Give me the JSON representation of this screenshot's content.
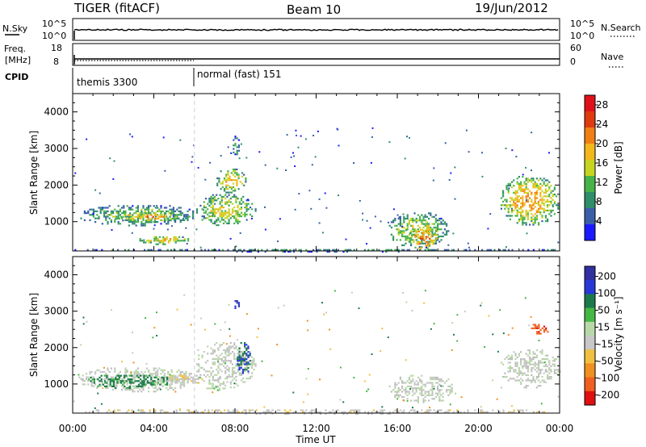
{
  "header": {
    "radar": "TIGER (fitACF)",
    "beam": "Beam 10",
    "date": "19/Jun/2012"
  },
  "top_panels": {
    "nsky_label": "N.Sky",
    "nsky_ticks": [
      "10^5",
      "10^0"
    ],
    "nsearch_label": "N.Search",
    "nsearch_ticks": [
      "10^5",
      "10^0"
    ],
    "freq_label_1": "Freq.",
    "freq_label_2": "[MHz]",
    "freq_ticks": [
      "18",
      "8"
    ],
    "nave_label": "Nave",
    "nave_ticks": [
      "60",
      "0"
    ],
    "cpid_label": "CPID",
    "cpid_segments": [
      {
        "label": "themis 3300",
        "start_hour": 0.0
      },
      {
        "label": "normal (fast) 151",
        "start_hour": 6.0
      }
    ]
  },
  "colors": {
    "power_scale": [
      "#1a1aff",
      "#3a5fa8",
      "#2f8f6a",
      "#48b34a",
      "#c7d420",
      "#f2b81c",
      "#f07f14",
      "#e03a10",
      "#e0101a"
    ],
    "velocity_scale": [
      "#3030a0",
      "#2838d8",
      "#1c7a4a",
      "#44b844",
      "#b8d8a8",
      "#c8c8c8",
      "#f0c040",
      "#f09020",
      "#f06020",
      "#e01010"
    ],
    "ground_scatter": "#bdbdbd"
  },
  "chart_data": [
    {
      "type": "heatmap",
      "panel": "power",
      "ylabel": "Slant Range [km]",
      "yticks": [
        "1000",
        "2000",
        "3000",
        "4000"
      ],
      "ylim": [
        200,
        4500
      ],
      "xlim": [
        0,
        24
      ],
      "xticklabels": [
        "00:00",
        "04:00",
        "08:00",
        "12:00",
        "16:00",
        "20:00",
        "00:00"
      ],
      "colorbar": {
        "label": "Power [dB]",
        "ticks": [
          "4",
          "8",
          "12",
          "16",
          "20",
          "24",
          "28"
        ],
        "range": [
          0,
          30
        ]
      },
      "regions": [
        {
          "t": [
            0.2,
            6.2
          ],
          "r": [
            900,
            1500
          ],
          "value": 12
        },
        {
          "t": [
            2.0,
            5.5
          ],
          "r": [
            1000,
            1300
          ],
          "value": 20
        },
        {
          "t": [
            3.2,
            5.8
          ],
          "r": [
            400,
            650
          ],
          "value": 18
        },
        {
          "t": [
            6.0,
            9.0
          ],
          "r": [
            900,
            1800
          ],
          "value": 16
        },
        {
          "t": [
            7.0,
            8.5
          ],
          "r": [
            1800,
            2500
          ],
          "value": 18
        },
        {
          "t": [
            7.8,
            8.2
          ],
          "r": [
            2800,
            3400
          ],
          "value": 10
        },
        {
          "t": [
            15.5,
            18.5
          ],
          "r": [
            300,
            1300
          ],
          "value": 14
        },
        {
          "t": [
            16.5,
            18.0
          ],
          "r": [
            250,
            900
          ],
          "value": 24
        },
        {
          "t": [
            21.0,
            24.0
          ],
          "r": [
            900,
            2300
          ],
          "value": 20
        },
        {
          "t": [
            0.0,
            24.0
          ],
          "r": [
            200,
            300
          ],
          "value": 8
        }
      ]
    },
    {
      "type": "heatmap",
      "panel": "velocity",
      "ylabel": "Slant Range [km]",
      "yticks": [
        "1000",
        "2000",
        "3000",
        "4000"
      ],
      "ylim": [
        200,
        4500
      ],
      "xlim": [
        0,
        24
      ],
      "xlabel": "Time UT",
      "xticklabels": [
        "00:00",
        "04:00",
        "08:00",
        "12:00",
        "16:00",
        "20:00",
        "00:00"
      ],
      "colorbar": {
        "label": "Velocity [m s⁻¹]",
        "ticks": [
          "200",
          "100",
          "50",
          "15",
          "-15",
          "-50",
          "-100",
          "-200"
        ],
        "range": [
          -250,
          250
        ]
      },
      "regions": [
        {
          "t": [
            0.2,
            6.2
          ],
          "r": [
            800,
            1500
          ],
          "value": 0
        },
        {
          "t": [
            0.5,
            5.0
          ],
          "r": [
            900,
            1300
          ],
          "value": 120
        },
        {
          "t": [
            4.5,
            6.5
          ],
          "r": [
            1000,
            1300
          ],
          "value": -40
        },
        {
          "t": [
            6.0,
            9.0
          ],
          "r": [
            900,
            2200
          ],
          "value": 0
        },
        {
          "t": [
            6.5,
            7.8
          ],
          "r": [
            850,
            1000
          ],
          "value": 40
        },
        {
          "t": [
            8.0,
            8.8
          ],
          "r": [
            1300,
            2200
          ],
          "value": 150
        },
        {
          "t": [
            7.8,
            8.2
          ],
          "r": [
            3100,
            3400
          ],
          "value": 200
        },
        {
          "t": [
            15.5,
            19.0
          ],
          "r": [
            500,
            1300
          ],
          "value": 0
        },
        {
          "t": [
            0.0,
            24.0
          ],
          "r": [
            200,
            350
          ],
          "value": -30
        },
        {
          "t": [
            21.0,
            24.0
          ],
          "r": [
            900,
            2000
          ],
          "value": 0
        },
        {
          "t": [
            22.5,
            23.5
          ],
          "r": [
            2400,
            2700
          ],
          "value": -180
        }
      ]
    }
  ],
  "axes": {
    "xlabel": "Time UT"
  }
}
